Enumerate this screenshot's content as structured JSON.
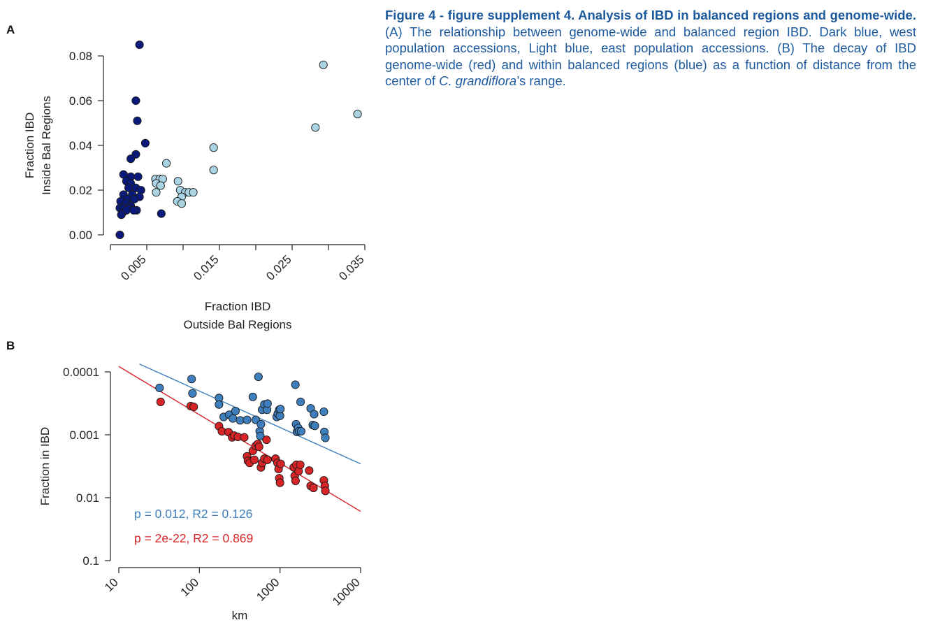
{
  "caption": {
    "title": "Figure 4 - figure supplement 4. Analysis of IBD in balanced regions and genome-wide.",
    "text_a": " (A) The relationship between genome-wide and balanced region IBD. Dark blue, west population accessions, Light blue, east population accessions. (B) The decay of IBD genome-wide (red) and within balanced regions (blue) as a function of distance from the center of ",
    "species": "C. grandiflora",
    "text_b": "’s range."
  },
  "colors": {
    "dark_blue": "#0a1a7a",
    "light_blue": "#a9d4e3",
    "mid_blue": "#3f7fbd",
    "red": "#d62427",
    "caption": "#1d5a9e"
  },
  "chart_data": [
    {
      "panel_label": "A",
      "type": "scatter",
      "xlabel": [
        "Fraction IBD",
        "Outside Bal Regions"
      ],
      "ylabel": [
        "Fraction IBD",
        "Inside Bal Regions"
      ],
      "xlim": [
        0.0,
        0.035
      ],
      "ylim": [
        0.0,
        0.08
      ],
      "xticks": [
        0.005,
        0.015,
        0.025,
        0.035
      ],
      "xtick_labels": [
        "0.005",
        "0.015",
        "0.025",
        "0.035"
      ],
      "yticks": [
        0.0,
        0.02,
        0.04,
        0.06,
        0.08
      ],
      "ytick_labels": [
        "0.00",
        "0.02",
        "0.04",
        "0.06",
        "0.08"
      ],
      "series": [
        {
          "color": "#0a1a7a",
          "points": [
            [
              0.004,
              0.085
            ],
            [
              0.0035,
              0.06
            ],
            [
              0.0037,
              0.051
            ],
            [
              0.0048,
              0.041
            ],
            [
              0.0035,
              0.036
            ],
            [
              0.0028,
              0.034
            ],
            [
              0.0018,
              0.027
            ],
            [
              0.0028,
              0.026
            ],
            [
              0.0038,
              0.026
            ],
            [
              0.0022,
              0.024
            ],
            [
              0.0028,
              0.023
            ],
            [
              0.0025,
              0.021
            ],
            [
              0.0035,
              0.021
            ],
            [
              0.0042,
              0.02
            ],
            [
              0.0018,
              0.018
            ],
            [
              0.003,
              0.018
            ],
            [
              0.004,
              0.017
            ],
            [
              0.0023,
              0.016
            ],
            [
              0.0033,
              0.016
            ],
            [
              0.0014,
              0.015
            ],
            [
              0.0022,
              0.014
            ],
            [
              0.0028,
              0.013
            ],
            [
              0.0013,
              0.012
            ],
            [
              0.0018,
              0.012
            ],
            [
              0.0025,
              0.012
            ],
            [
              0.0036,
              0.011
            ],
            [
              0.0017,
              0.01
            ],
            [
              0.0022,
              0.011
            ],
            [
              0.0032,
              0.011
            ],
            [
              0.0015,
              0.009
            ],
            [
              0.007,
              0.0095
            ],
            [
              0.0013,
              0.0
            ]
          ]
        },
        {
          "color": "#a9d4e3",
          "points": [
            [
              0.0293,
              0.076
            ],
            [
              0.034,
              0.054
            ],
            [
              0.0282,
              0.048
            ],
            [
              0.0142,
              0.039
            ],
            [
              0.0142,
              0.029
            ],
            [
              0.0077,
              0.032
            ],
            [
              0.0062,
              0.025
            ],
            [
              0.0068,
              0.025
            ],
            [
              0.0072,
              0.025
            ],
            [
              0.0063,
              0.023
            ],
            [
              0.0069,
              0.022
            ],
            [
              0.0093,
              0.024
            ],
            [
              0.0063,
              0.019
            ],
            [
              0.0096,
              0.02
            ],
            [
              0.0103,
              0.019
            ],
            [
              0.0108,
              0.019
            ],
            [
              0.0114,
              0.019
            ],
            [
              0.0098,
              0.017
            ],
            [
              0.0092,
              0.015
            ],
            [
              0.0098,
              0.014
            ]
          ]
        }
      ]
    },
    {
      "panel_label": "B",
      "type": "scatter",
      "xlabel": "km",
      "ylabel": "Fraction in IBD",
      "xscale": "log",
      "yscale": "log",
      "yaxis_inverted": true,
      "xlim": [
        10,
        10000
      ],
      "ylim": [
        0.0001,
        0.1
      ],
      "xticks": [
        10,
        100,
        1000,
        10000
      ],
      "xtick_labels": [
        "10",
        "100",
        "1000",
        "10000"
      ],
      "yticks": [
        0.0001,
        0.001,
        0.01,
        0.1
      ],
      "ytick_labels": [
        "0.0001",
        "0.001",
        "0.01",
        "0.1"
      ],
      "series": [
        {
          "color": "#3f7fbd",
          "fit_line": {
            "x": [
              18,
              10000
            ],
            "y": [
              7.5e-05,
              0.0029
            ]
          },
          "annotation": "p = 0.012, R2 = 0.126",
          "points": [
            [
              32,
              0.00018
            ],
            [
              80,
              0.00013
            ],
            [
              82,
              0.00022
            ],
            [
              175,
              0.00026
            ],
            [
              175,
              0.00033
            ],
            [
              200,
              0.00052
            ],
            [
              235,
              0.00048
            ],
            [
              260,
              0.00055
            ],
            [
              280,
              0.00042
            ],
            [
              320,
              0.00059
            ],
            [
              390,
              0.00058
            ],
            [
              460,
              0.00025
            ],
            [
              500,
              0.00058
            ],
            [
              540,
              0.00012
            ],
            [
              560,
              0.00088
            ],
            [
              570,
              0.00105
            ],
            [
              580,
              0.00068
            ],
            [
              600,
              0.0004
            ],
            [
              640,
              0.00033
            ],
            [
              690,
              0.0004
            ],
            [
              700,
              0.00032
            ],
            [
              910,
              0.00052
            ],
            [
              940,
              0.00046
            ],
            [
              980,
              0.0004
            ],
            [
              1000,
              0.0005
            ],
            [
              1010,
              0.00039
            ],
            [
              1550,
              0.00016
            ],
            [
              1580,
              0.00068
            ],
            [
              1620,
              0.0009
            ],
            [
              1680,
              0.00078
            ],
            [
              1720,
              0.00088
            ],
            [
              1800,
              0.0003
            ],
            [
              1830,
              0.00088
            ],
            [
              2400,
              0.00038
            ],
            [
              2550,
              0.0007
            ],
            [
              2650,
              0.00047
            ],
            [
              2700,
              0.00072
            ],
            [
              3500,
              0.00043
            ],
            [
              3550,
              0.0009
            ],
            [
              3650,
              0.00112
            ]
          ]
        },
        {
          "color": "#d62427",
          "fit_line": {
            "x": [
              10,
              10000
            ],
            "y": [
              8.2e-05,
              0.0165
            ]
          },
          "annotation": "p = 2e-22, R2 = 0.869",
          "points": [
            [
              33,
              0.0003
            ],
            [
              78,
              0.00035
            ],
            [
              85,
              0.00036
            ],
            [
              175,
              0.00073
            ],
            [
              190,
              0.00088
            ],
            [
              230,
              0.00091
            ],
            [
              255,
              0.0011
            ],
            [
              270,
              0.00103
            ],
            [
              300,
              0.00108
            ],
            [
              360,
              0.0011
            ],
            [
              390,
              0.0022
            ],
            [
              400,
              0.0026
            ],
            [
              420,
              0.0028
            ],
            [
              460,
              0.0018
            ],
            [
              480,
              0.0025
            ],
            [
              500,
              0.0015
            ],
            [
              530,
              0.0014
            ],
            [
              550,
              0.00155
            ],
            [
              580,
              0.0033
            ],
            [
              600,
              0.0028
            ],
            [
              640,
              0.0024
            ],
            [
              680,
              0.0012
            ],
            [
              700,
              0.0025
            ],
            [
              880,
              0.0024
            ],
            [
              930,
              0.0028
            ],
            [
              960,
              0.0035
            ],
            [
              980,
              0.0049
            ],
            [
              1000,
              0.0058
            ],
            [
              1020,
              0.0029
            ],
            [
              1480,
              0.0033
            ],
            [
              1520,
              0.0045
            ],
            [
              1560,
              0.0054
            ],
            [
              1600,
              0.003
            ],
            [
              1700,
              0.0038
            ],
            [
              1780,
              0.003
            ],
            [
              2300,
              0.0037
            ],
            [
              2400,
              0.0065
            ],
            [
              2600,
              0.007
            ],
            [
              3500,
              0.0053
            ],
            [
              3600,
              0.0065
            ],
            [
              3650,
              0.0078
            ]
          ]
        }
      ]
    }
  ]
}
